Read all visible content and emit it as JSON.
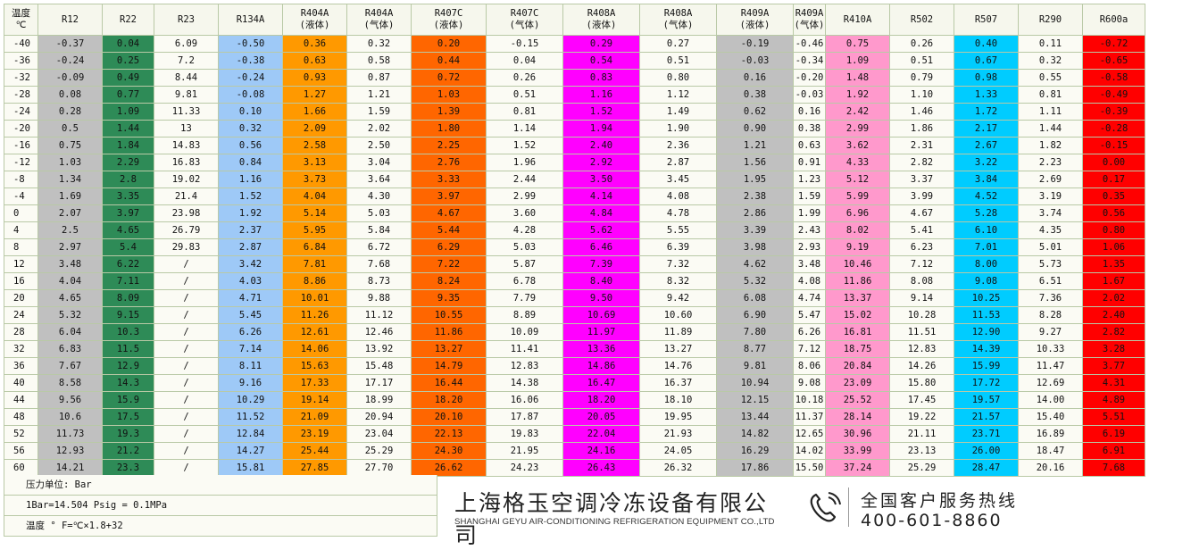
{
  "table": {
    "headers": [
      {
        "top": "温度",
        "bottom": "℃"
      },
      {
        "top": "R12",
        "bottom": ""
      },
      {
        "top": "R22",
        "bottom": ""
      },
      {
        "top": "R23",
        "bottom": ""
      },
      {
        "top": "R134A",
        "bottom": ""
      },
      {
        "top": "R404A",
        "bottom": "(液体)"
      },
      {
        "top": "R404A",
        "bottom": "(气体)"
      },
      {
        "top": "R407C",
        "bottom": "(液体)"
      },
      {
        "top": "R407C",
        "bottom": "(气体)"
      },
      {
        "top": "R408A",
        "bottom": "(液体)"
      },
      {
        "top": "R408A",
        "bottom": "(气体)"
      },
      {
        "top": "R409A",
        "bottom": "(液体)"
      },
      {
        "top": "R409A",
        "bottom": "(气体)"
      },
      {
        "top": "R410A",
        "bottom": ""
      },
      {
        "top": "R502",
        "bottom": ""
      },
      {
        "top": "R507",
        "bottom": ""
      },
      {
        "top": "R290",
        "bottom": ""
      },
      {
        "top": "R600a",
        "bottom": ""
      }
    ],
    "column_colors": [
      "",
      "#c0c0c0",
      "#2e8b57",
      "",
      "#9ec9f7",
      "#ff9900",
      "",
      "#ff6600",
      "",
      "#ff00ff",
      "",
      "#c0c0c0",
      "",
      "#ff99cc",
      "",
      "#00ccff",
      "",
      "#ff0000"
    ],
    "rows": [
      [
        "-40",
        "-0.37",
        "0.04",
        "6.09",
        "-0.50",
        "0.36",
        "0.32",
        "0.20",
        "-0.15",
        "0.29",
        "0.27",
        "-0.19",
        "-0.46",
        "0.75",
        "0.26",
        "0.40",
        "0.11",
        "-0.72"
      ],
      [
        "-36",
        "-0.24",
        "0.25",
        "7.2",
        "-0.38",
        "0.63",
        "0.58",
        "0.44",
        "0.04",
        "0.54",
        "0.51",
        "-0.03",
        "-0.34",
        "1.09",
        "0.51",
        "0.67",
        "0.32",
        "-0.65"
      ],
      [
        "-32",
        "-0.09",
        "0.49",
        "8.44",
        "-0.24",
        "0.93",
        "0.87",
        "0.72",
        "0.26",
        "0.83",
        "0.80",
        "0.16",
        "-0.20",
        "1.48",
        "0.79",
        "0.98",
        "0.55",
        "-0.58"
      ],
      [
        "-28",
        "0.08",
        "0.77",
        "9.81",
        "-0.08",
        "1.27",
        "1.21",
        "1.03",
        "0.51",
        "1.16",
        "1.12",
        "0.38",
        "-0.03",
        "1.92",
        "1.10",
        "1.33",
        "0.81",
        "-0.49"
      ],
      [
        "-24",
        "0.28",
        "1.09",
        "11.33",
        "0.10",
        "1.66",
        "1.59",
        "1.39",
        "0.81",
        "1.52",
        "1.49",
        "0.62",
        "0.16",
        "2.42",
        "1.46",
        "1.72",
        "1.11",
        "-0.39"
      ],
      [
        "-20",
        "0.5",
        "1.44",
        "13",
        "0.32",
        "2.09",
        "2.02",
        "1.80",
        "1.14",
        "1.94",
        "1.90",
        "0.90",
        "0.38",
        "2.99",
        "1.86",
        "2.17",
        "1.44",
        "-0.28"
      ],
      [
        "-16",
        "0.75",
        "1.84",
        "14.83",
        "0.56",
        "2.58",
        "2.50",
        "2.25",
        "1.52",
        "2.40",
        "2.36",
        "1.21",
        "0.63",
        "3.62",
        "2.31",
        "2.67",
        "1.82",
        "-0.15"
      ],
      [
        "-12",
        "1.03",
        "2.29",
        "16.83",
        "0.84",
        "3.13",
        "3.04",
        "2.76",
        "1.96",
        "2.92",
        "2.87",
        "1.56",
        "0.91",
        "4.33",
        "2.82",
        "3.22",
        "2.23",
        "0.00"
      ],
      [
        "-8",
        "1.34",
        "2.8",
        "19.02",
        "1.16",
        "3.73",
        "3.64",
        "3.33",
        "2.44",
        "3.50",
        "3.45",
        "1.95",
        "1.23",
        "5.12",
        "3.37",
        "3.84",
        "2.69",
        "0.17"
      ],
      [
        "-4",
        "1.69",
        "3.35",
        "21.4",
        "1.52",
        "4.04",
        "4.30",
        "3.97",
        "2.99",
        "4.14",
        "4.08",
        "2.38",
        "1.59",
        "5.99",
        "3.99",
        "4.52",
        "3.19",
        "0.35"
      ],
      [
        "0",
        "2.07",
        "3.97",
        "23.98",
        "1.92",
        "5.14",
        "5.03",
        "4.67",
        "3.60",
        "4.84",
        "4.78",
        "2.86",
        "1.99",
        "6.96",
        "4.67",
        "5.28",
        "3.74",
        "0.56"
      ],
      [
        "4",
        "2.5",
        "4.65",
        "26.79",
        "2.37",
        "5.95",
        "5.84",
        "5.44",
        "4.28",
        "5.62",
        "5.55",
        "3.39",
        "2.43",
        "8.02",
        "5.41",
        "6.10",
        "4.35",
        "0.80"
      ],
      [
        "8",
        "2.97",
        "5.4",
        "29.83",
        "2.87",
        "6.84",
        "6.72",
        "6.29",
        "5.03",
        "6.46",
        "6.39",
        "3.98",
        "2.93",
        "9.19",
        "6.23",
        "7.01",
        "5.01",
        "1.06"
      ],
      [
        "12",
        "3.48",
        "6.22",
        "/",
        "3.42",
        "7.81",
        "7.68",
        "7.22",
        "5.87",
        "7.39",
        "7.32",
        "4.62",
        "3.48",
        "10.46",
        "7.12",
        "8.00",
        "5.73",
        "1.35"
      ],
      [
        "16",
        "4.04",
        "7.11",
        "/",
        "4.03",
        "8.86",
        "8.73",
        "8.24",
        "6.78",
        "8.40",
        "8.32",
        "5.32",
        "4.08",
        "11.86",
        "8.08",
        "9.08",
        "6.51",
        "1.67"
      ],
      [
        "20",
        "4.65",
        "8.09",
        "/",
        "4.71",
        "10.01",
        "9.88",
        "9.35",
        "7.79",
        "9.50",
        "9.42",
        "6.08",
        "4.74",
        "13.37",
        "9.14",
        "10.25",
        "7.36",
        "2.02"
      ],
      [
        "24",
        "5.32",
        "9.15",
        "/",
        "5.45",
        "11.26",
        "11.12",
        "10.55",
        "8.89",
        "10.69",
        "10.60",
        "6.90",
        "5.47",
        "15.02",
        "10.28",
        "11.53",
        "8.28",
        "2.40"
      ],
      [
        "28",
        "6.04",
        "10.3",
        "/",
        "6.26",
        "12.61",
        "12.46",
        "11.86",
        "10.09",
        "11.97",
        "11.89",
        "7.80",
        "6.26",
        "16.81",
        "11.51",
        "12.90",
        "9.27",
        "2.82"
      ],
      [
        "32",
        "6.83",
        "11.5",
        "/",
        "7.14",
        "14.06",
        "13.92",
        "13.27",
        "11.41",
        "13.36",
        "13.27",
        "8.77",
        "7.12",
        "18.75",
        "12.83",
        "14.39",
        "10.33",
        "3.28"
      ],
      [
        "36",
        "7.67",
        "12.9",
        "/",
        "8.11",
        "15.63",
        "15.48",
        "14.79",
        "12.83",
        "14.86",
        "14.76",
        "9.81",
        "8.06",
        "20.84",
        "14.26",
        "15.99",
        "11.47",
        "3.77"
      ],
      [
        "40",
        "8.58",
        "14.3",
        "/",
        "9.16",
        "17.33",
        "17.17",
        "16.44",
        "14.38",
        "16.47",
        "16.37",
        "10.94",
        "9.08",
        "23.09",
        "15.80",
        "17.72",
        "12.69",
        "4.31"
      ],
      [
        "44",
        "9.56",
        "15.9",
        "/",
        "10.29",
        "19.14",
        "18.99",
        "18.20",
        "16.06",
        "18.20",
        "18.10",
        "12.15",
        "10.18",
        "25.52",
        "17.45",
        "19.57",
        "14.00",
        "4.89"
      ],
      [
        "48",
        "10.6",
        "17.5",
        "/",
        "11.52",
        "21.09",
        "20.94",
        "20.10",
        "17.87",
        "20.05",
        "19.95",
        "13.44",
        "11.37",
        "28.14",
        "19.22",
        "21.57",
        "15.40",
        "5.51"
      ],
      [
        "52",
        "11.73",
        "19.3",
        "/",
        "12.84",
        "23.19",
        "23.04",
        "22.13",
        "19.83",
        "22.04",
        "21.93",
        "14.82",
        "12.65",
        "30.96",
        "21.11",
        "23.71",
        "16.89",
        "6.19"
      ],
      [
        "56",
        "12.93",
        "21.2",
        "/",
        "14.27",
        "25.44",
        "25.29",
        "24.30",
        "21.95",
        "24.16",
        "24.05",
        "16.29",
        "14.02",
        "33.99",
        "23.13",
        "26.00",
        "18.47",
        "6.91"
      ],
      [
        "60",
        "14.21",
        "23.3",
        "/",
        "15.81",
        "27.85",
        "27.70",
        "26.62",
        "24.23",
        "26.43",
        "26.32",
        "17.86",
        "15.50",
        "37.24",
        "25.29",
        "28.47",
        "20.16",
        "7.68"
      ]
    ]
  },
  "notes": {
    "unit": "压力单位: Bar",
    "conversion": "1Bar=14.504 Psig = 0.1MPa",
    "temperature": "温度 ° F=℃×1.8+32"
  },
  "company": {
    "name_cn": "上海格玉空调冷冻设备有限公司",
    "name_en": "SHANGHAI GEYU AIR-CONDITIONING REFRIGERATION EQUIPMENT CO.,LTD"
  },
  "hotline": {
    "label": "全国客户服务热线",
    "number": "400-601-8860",
    "icon": "phone-icon"
  }
}
